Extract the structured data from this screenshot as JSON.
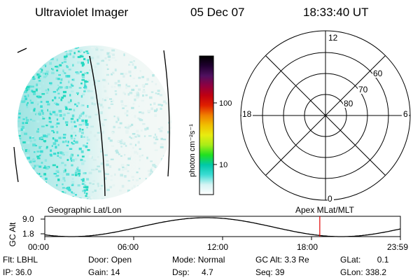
{
  "header": {
    "title": "Ultraviolet Imager",
    "date": "05 Dec 07",
    "time": "18:33:40 UT"
  },
  "colorbar": {
    "unit_label": "photon cm⁻²s⁻¹",
    "ticks": [
      {
        "label": "100",
        "value": 100
      },
      {
        "label": "10",
        "value": 10
      }
    ],
    "scale": "log",
    "stops": [
      "#ffffff",
      "#d6f4f4",
      "#3cdcd4",
      "#00c8a8",
      "#20e020",
      "#a8ec18",
      "#e8ec10",
      "#f0c000",
      "#f08000",
      "#e02000",
      "#c00010",
      "#900040",
      "#501060",
      "#200030",
      "#000000"
    ]
  },
  "polar": {
    "labels": {
      "top": "12",
      "bottom": "0",
      "left": "18",
      "right": "6"
    },
    "lat_labels": [
      "60",
      "70",
      "80"
    ]
  },
  "timeline": {
    "left_label": "Geographic Lat/Lon",
    "right_label": "Apex MLat/MLT",
    "y_axis_label": "GC Alt",
    "y_ticks": [
      "9.0",
      "1.8"
    ],
    "x_ticks": [
      "00:00",
      "06:00",
      "12:00",
      "18:00",
      "23:59"
    ],
    "marker_time_hours": 18.56,
    "marker_color": "#e00000"
  },
  "footer": {
    "flt": {
      "label": "Flt:",
      "value": "LBHL"
    },
    "ip": {
      "label": "IP:",
      "value": "36.0"
    },
    "door": {
      "label": "Door:",
      "value": "Open"
    },
    "gain": {
      "label": "Gain:",
      "value": "14"
    },
    "mode": {
      "label": "Mode:",
      "value": "Normal"
    },
    "dsp": {
      "label": "Dsp:",
      "value": "4.7"
    },
    "gcalt": {
      "label": "GC Alt:",
      "value": "3.3 Re"
    },
    "seq": {
      "label": "Seq:",
      "value": "39"
    },
    "glat": {
      "label": "GLat:",
      "value": "0.1"
    },
    "glon": {
      "label": "GLon:",
      "value": "338.2"
    }
  }
}
